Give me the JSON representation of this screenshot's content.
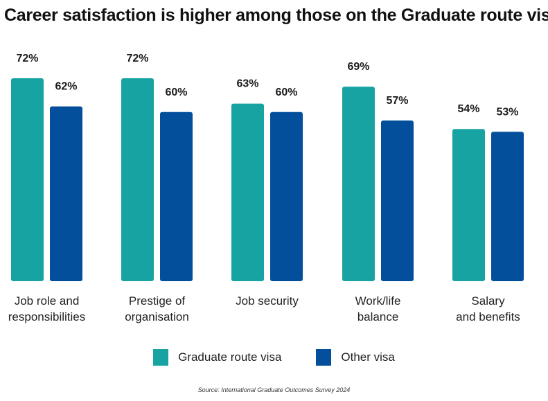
{
  "colors": {
    "graduate": "#18A3A3",
    "other": "#034F9B"
  },
  "chart_data": {
    "type": "bar",
    "title": "Career satisfaction is higher among those on the Graduate route visa",
    "categories": [
      [
        "Job role and",
        "responsibilities"
      ],
      [
        "Prestige of",
        "organisation"
      ],
      [
        "Job security"
      ],
      [
        "Work/life",
        "balance"
      ],
      [
        "Salary",
        "and benefits"
      ]
    ],
    "series": [
      {
        "name": "Graduate route visa",
        "values": [
          72,
          72,
          63,
          69,
          54
        ],
        "labels": [
          "72%",
          "72%",
          "63%",
          "69%",
          "54%"
        ]
      },
      {
        "name": "Other visa",
        "values": [
          62,
          60,
          60,
          57,
          53
        ],
        "labels": [
          "62%",
          "60%",
          "60%",
          "57%",
          "53%"
        ]
      }
    ],
    "ylim": [
      0,
      100
    ],
    "grid": false,
    "xlabel": "",
    "ylabel": "",
    "legend_position": "bottom"
  },
  "source": "Source: International Graduate Outcomes Survey 2024"
}
